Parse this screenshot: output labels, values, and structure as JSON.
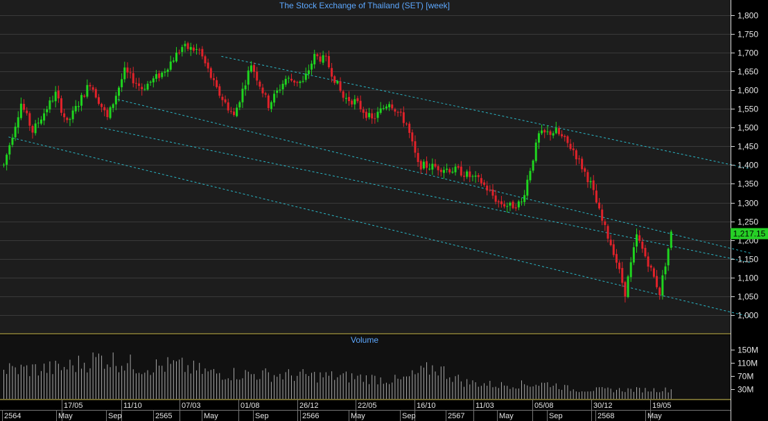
{
  "chart_data": {
    "type": "candlestick",
    "title": "The Stock Exchange of Thailand (SET) [week]",
    "last_price_label": "1,217.15",
    "price_axis": {
      "ticks": [
        "1,000",
        "1,050",
        "1,100",
        "1,150",
        "1,200",
        "1,250",
        "1,300",
        "1,350",
        "1,400",
        "1,450",
        "1,500",
        "1,550",
        "1,600",
        "1,650",
        "1,700",
        "1,750",
        "1,800"
      ],
      "ylim": [
        952,
        1820
      ]
    },
    "volume_panel": {
      "title": "Volume",
      "ticks": [
        "150M",
        "110M",
        "70M",
        "30M"
      ],
      "ylim": [
        0,
        200
      ]
    },
    "date_labels_top": [
      "17/05",
      "11/10",
      "07/03",
      "01/08",
      "26/12",
      "22/05",
      "16/10",
      "11/03",
      "05/08",
      "30/12",
      "19/05"
    ],
    "date_labels_bottom": [
      "2564",
      "May",
      "Sep",
      "2565",
      "May",
      "Sep",
      "2566",
      "May",
      "Sep",
      "2567",
      "May",
      "Sep",
      "2568",
      "May"
    ],
    "n_weeks": 220,
    "price_path_anchors": [
      [
        0,
        1400
      ],
      [
        6,
        1565
      ],
      [
        10,
        1490
      ],
      [
        18,
        1590
      ],
      [
        22,
        1510
      ],
      [
        30,
        1620
      ],
      [
        36,
        1525
      ],
      [
        42,
        1650
      ],
      [
        48,
        1605
      ],
      [
        55,
        1645
      ],
      [
        62,
        1715
      ],
      [
        68,
        1705
      ],
      [
        74,
        1600
      ],
      [
        80,
        1530
      ],
      [
        86,
        1670
      ],
      [
        92,
        1560
      ],
      [
        98,
        1630
      ],
      [
        104,
        1620
      ],
      [
        108,
        1690
      ],
      [
        112,
        1680
      ],
      [
        118,
        1580
      ],
      [
        122,
        1570
      ],
      [
        128,
        1520
      ],
      [
        134,
        1570
      ],
      [
        140,
        1510
      ],
      [
        144,
        1400
      ],
      [
        150,
        1395
      ],
      [
        158,
        1385
      ],
      [
        166,
        1355
      ],
      [
        172,
        1300
      ],
      [
        176,
        1290
      ],
      [
        180,
        1300
      ],
      [
        186,
        1480
      ],
      [
        192,
        1490
      ],
      [
        198,
        1440
      ],
      [
        204,
        1350
      ],
      [
        208,
        1250
      ],
      [
        212,
        1170
      ],
      [
        216,
        1060
      ],
      [
        220,
        1210
      ],
      [
        224,
        1140
      ],
      [
        228,
        1060
      ],
      [
        232,
        1217
      ]
    ],
    "trend_channel_lines": [
      [
        [
          76,
          1690
        ],
        [
          260,
          1390
        ]
      ],
      [
        [
          40,
          1575
        ],
        [
          260,
          1165
        ]
      ],
      [
        [
          34,
          1500
        ],
        [
          260,
          1140
        ]
      ],
      [
        [
          2,
          1475
        ],
        [
          260,
          995
        ]
      ]
    ],
    "volume_anchors": [
      [
        0,
        95
      ],
      [
        20,
        100
      ],
      [
        34,
        135
      ],
      [
        48,
        105
      ],
      [
        60,
        110
      ],
      [
        72,
        85
      ],
      [
        90,
        80
      ],
      [
        110,
        75
      ],
      [
        124,
        70
      ],
      [
        138,
        60
      ],
      [
        150,
        105
      ],
      [
        160,
        55
      ],
      [
        172,
        45
      ],
      [
        190,
        50
      ],
      [
        198,
        30
      ],
      [
        232,
        30
      ]
    ],
    "colors": {
      "up": "#1fd51f",
      "down": "#e0222a",
      "background": "#000000",
      "plot_background": "#1d1d1d",
      "gridline": "#3a3a3a",
      "trendline": "#2ab8c8",
      "axis_text": "#e6e6e6",
      "title_text": "#5da8ff",
      "volume": "#a8a8a8",
      "last_price_bg": "#26d026",
      "panel_border": "#e0d060"
    }
  }
}
